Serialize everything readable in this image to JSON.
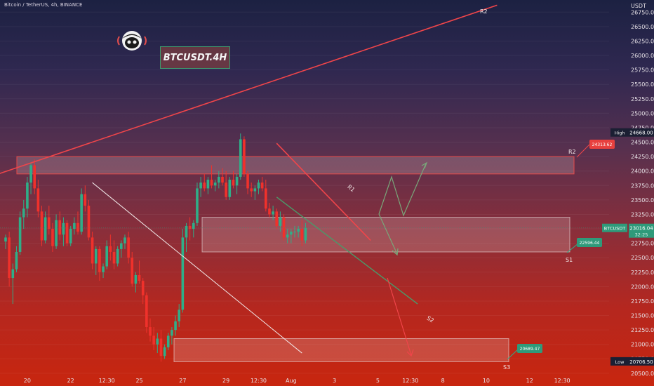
{
  "header": {
    "symbol_text": "Bitcoin / TetherUS, 4h, BINANCE"
  },
  "watermark": {
    "text": "BTCUSDT.4H"
  },
  "colors": {
    "bull": "#2fae88",
    "bear": "#f0312b",
    "resistance": "#f0454a",
    "support": "#4a9a6a",
    "zone_fill": "rgba(230,210,210,0.22)",
    "zone_border": "#e84a4a",
    "diagonal": "#f2eaea"
  },
  "chart_data": {
    "type": "candlestick",
    "y_axis": {
      "unit_label": "USDT",
      "ticks": [
        26750,
        26500,
        26250,
        26000,
        25750,
        25500,
        25250,
        25000,
        24750,
        24500,
        24250,
        24000,
        23750,
        23500,
        23250,
        23000,
        22750,
        22500,
        22250,
        22000,
        21750,
        21500,
        21250,
        21000,
        20750,
        20500
      ],
      "tick_labels": [
        "26750.00",
        "26500.00",
        "26250.00",
        "26000.00",
        "25750.00",
        "25500.00",
        "25250.00",
        "25000.00",
        "24750.00",
        "24500.00",
        "24250.00",
        "24000.00",
        "23750.00",
        "23500.00",
        "23250.00",
        "23000.00",
        "22750.00",
        "22500.00",
        "22250.00",
        "22000.00",
        "21750.00",
        "21500.00",
        "21250.00",
        "21000.00",
        "20750.00",
        "20500.00"
      ],
      "range": [
        20450,
        26960
      ]
    },
    "x_axis": {
      "tick_labels": [
        "20",
        "22",
        "12:30",
        "25",
        "27",
        "29",
        "12:30",
        "Aug",
        "3",
        "5",
        "12:30",
        "8",
        "10",
        "12",
        "12:30"
      ],
      "tick_index": [
        6,
        18,
        28,
        37,
        49,
        61,
        70,
        79,
        91,
        103,
        112,
        121,
        133,
        145,
        154
      ]
    },
    "candles": [
      [
        22780,
        22900,
        22650,
        22850
      ],
      [
        22850,
        22950,
        22000,
        22150
      ],
      [
        22150,
        22400,
        21700,
        22300
      ],
      [
        22300,
        22700,
        22250,
        22600
      ],
      [
        22600,
        23300,
        22550,
        23200
      ],
      [
        23200,
        23500,
        23000,
        23350
      ],
      [
        23350,
        23900,
        23200,
        23800
      ],
      [
        23800,
        24150,
        23600,
        24100
      ],
      [
        24100,
        24200,
        23600,
        23700
      ],
      [
        23700,
        23850,
        23200,
        23300
      ],
      [
        23300,
        23400,
        22700,
        22800
      ],
      [
        22800,
        23300,
        22750,
        23200
      ],
      [
        23200,
        23400,
        22900,
        23000
      ],
      [
        23000,
        23100,
        22600,
        22700
      ],
      [
        22700,
        23250,
        22650,
        23150
      ],
      [
        23150,
        23300,
        22800,
        22900
      ],
      [
        22900,
        23200,
        22700,
        23100
      ],
      [
        23100,
        23150,
        22700,
        22750
      ],
      [
        22750,
        23050,
        22700,
        23000
      ],
      [
        23000,
        23200,
        22900,
        23100
      ],
      [
        23100,
        23300,
        22900,
        22950
      ],
      [
        22950,
        23700,
        22900,
        23600
      ],
      [
        23600,
        23750,
        23300,
        23400
      ],
      [
        23400,
        23500,
        22800,
        22850
      ],
      [
        22850,
        22950,
        22300,
        22400
      ],
      [
        22400,
        22700,
        22200,
        22650
      ],
      [
        22650,
        22700,
        22100,
        22250
      ],
      [
        22250,
        22400,
        22150,
        22350
      ],
      [
        22350,
        22800,
        22300,
        22700
      ],
      [
        22700,
        22900,
        22450,
        22600
      ],
      [
        22600,
        22800,
        22300,
        22400
      ],
      [
        22400,
        22700,
        22350,
        22650
      ],
      [
        22650,
        22800,
        22500,
        22750
      ],
      [
        22750,
        22900,
        22650,
        22850
      ],
      [
        22850,
        22950,
        22400,
        22500
      ],
      [
        22500,
        22600,
        22000,
        22050
      ],
      [
        22050,
        22250,
        21900,
        22200
      ],
      [
        22200,
        22450,
        22050,
        22100
      ],
      [
        22100,
        22150,
        21700,
        21850
      ],
      [
        21850,
        21900,
        21200,
        21300
      ],
      [
        21300,
        21450,
        21050,
        21150
      ],
      [
        21150,
        21300,
        20900,
        21000
      ],
      [
        21000,
        21200,
        20850,
        21100
      ],
      [
        21100,
        21250,
        20700,
        20800
      ],
      [
        20800,
        21000,
        20750,
        20950
      ],
      [
        20950,
        21200,
        20900,
        21150
      ],
      [
        21150,
        21300,
        21000,
        21250
      ],
      [
        21250,
        21500,
        21150,
        21400
      ],
      [
        21400,
        21700,
        21300,
        21600
      ],
      [
        21600,
        23000,
        21550,
        22850
      ],
      [
        22850,
        23100,
        22600,
        23050
      ],
      [
        23050,
        23200,
        22800,
        23000
      ],
      [
        23000,
        23150,
        22850,
        23100
      ],
      [
        23100,
        23800,
        23050,
        23700
      ],
      [
        23700,
        23900,
        23550,
        23800
      ],
      [
        23800,
        23950,
        23650,
        23700
      ],
      [
        23700,
        23900,
        23600,
        23850
      ],
      [
        23850,
        24100,
        23700,
        23750
      ],
      [
        23750,
        23850,
        23650,
        23800
      ],
      [
        23800,
        24000,
        23700,
        23900
      ],
      [
        23900,
        24050,
        23750,
        23800
      ],
      [
        23800,
        24000,
        23500,
        23550
      ],
      [
        23550,
        23900,
        23500,
        23850
      ],
      [
        23850,
        24000,
        23700,
        23750
      ],
      [
        23750,
        23950,
        23600,
        23900
      ],
      [
        23900,
        24650,
        23850,
        24550
      ],
      [
        24550,
        24600,
        23900,
        23950
      ],
      [
        23950,
        24000,
        23600,
        23700
      ],
      [
        23700,
        23800,
        23550,
        23650
      ],
      [
        23650,
        23750,
        23500,
        23700
      ],
      [
        23700,
        23850,
        23600,
        23800
      ],
      [
        23800,
        23900,
        23650,
        23700
      ],
      [
        23700,
        23850,
        23300,
        23350
      ],
      [
        23350,
        23450,
        23200,
        23250
      ],
      [
        23250,
        23400,
        23150,
        23300
      ],
      [
        23300,
        23350,
        23000,
        23050
      ],
      [
        23050,
        23300,
        22950,
        23200
      ],
      [
        23200,
        23250,
        22800,
        22850
      ],
      [
        22850,
        23000,
        22750,
        22900
      ],
      [
        22900,
        23000,
        22750,
        22950
      ],
      [
        22950,
        23050,
        22850,
        22950
      ],
      [
        22950,
        23050,
        22850,
        23000
      ],
      [
        23000,
        23150,
        22700,
        22800
      ],
      [
        22800,
        23100,
        22750,
        23016
      ]
    ]
  },
  "drawings": {
    "zones": [
      {
        "top": 24250,
        "bottom": 23950
      },
      {
        "top": 23200,
        "bottom": 22600
      },
      {
        "top": 21100,
        "bottom": 20700
      }
    ],
    "lines": {
      "r2_line": {
        "p1": [
          -2,
          23950
        ],
        "p2": [
          136,
          26870
        ]
      },
      "r1_line": {
        "p1": [
          75,
          24480
        ],
        "p2": [
          101,
          22800
        ]
      },
      "s2_line": {
        "p1": [
          75,
          23550
        ],
        "p2": [
          114,
          21700
        ]
      },
      "diagonal": {
        "p1": [
          24,
          23800
        ],
        "p2": [
          82,
          20850
        ]
      }
    },
    "labels": {
      "r2_top": "R2",
      "r2_zone": "R2",
      "r1": "R1",
      "s1": "S1",
      "s2": "S2",
      "s3": "S3"
    }
  },
  "price_tags": {
    "high_label": "High",
    "high_value": "24668.00",
    "low_label": "Low",
    "low_value": "20706.50",
    "current_symbol": "BTCUSDT",
    "current_value": "23016.04",
    "current_countdown": "32:25",
    "r2_tag": "24313.62",
    "s1_tag": "22596.44",
    "s3_tag": "20689.47"
  }
}
